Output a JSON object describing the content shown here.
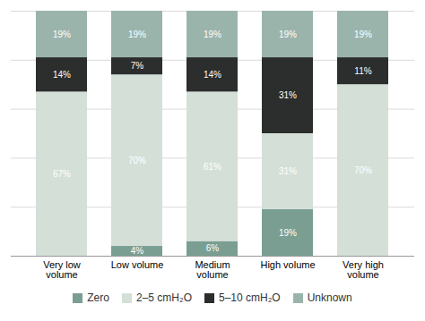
{
  "chart_data": {
    "type": "bar",
    "stacked": true,
    "categories": [
      "Very low volume",
      "Low volume",
      "Medium volume",
      "High volume",
      "Very high volume"
    ],
    "series": [
      {
        "name": "Zero",
        "color": "#7a9e92",
        "values": [
          0,
          4,
          6,
          19,
          0
        ],
        "value_labels": [
          null,
          "4%",
          "6%",
          "19%",
          null
        ]
      },
      {
        "name": "2–5 cmH₂O",
        "color": "#d4dfd8",
        "values": [
          67,
          70,
          61,
          31,
          70
        ],
        "value_labels": [
          "67%",
          "70%",
          "61%",
          "31%",
          "70%"
        ]
      },
      {
        "name": "5–10 cmH₂O",
        "color": "#2b2e2c",
        "values": [
          14,
          7,
          14,
          31,
          11
        ],
        "value_labels": [
          "14%",
          "7%",
          "14%",
          "31%",
          "11%"
        ]
      },
      {
        "name": "Unknown",
        "color": "#9ab4ac",
        "values": [
          19,
          19,
          19,
          19,
          19
        ],
        "value_labels": [
          "19%",
          "19%",
          "19%",
          "19%",
          "19%"
        ]
      }
    ],
    "ylim": [
      0,
      100
    ],
    "yticks": [
      0,
      20,
      40,
      60,
      80,
      100
    ],
    "grid": true,
    "tick_labels": "x",
    "data_labels": true,
    "legend": "bottom"
  }
}
